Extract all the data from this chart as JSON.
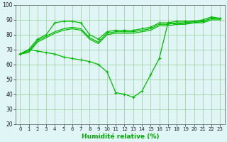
{
  "x": [
    0,
    1,
    2,
    3,
    4,
    5,
    6,
    7,
    8,
    9,
    10,
    11,
    12,
    13,
    14,
    15,
    16,
    17,
    18,
    19,
    20,
    21,
    22,
    23
  ],
  "line_upper": [
    67,
    70,
    77,
    80,
    88,
    89,
    89,
    88,
    80,
    77,
    82,
    83,
    83,
    83,
    84,
    85,
    88,
    88,
    89,
    89,
    89,
    90,
    92,
    91
  ],
  "line_mid1": [
    67,
    69,
    76,
    79,
    82,
    84,
    85,
    84,
    78,
    75,
    81,
    82,
    82,
    82,
    83,
    84,
    87,
    87,
    88,
    88,
    88,
    89,
    91,
    91
  ],
  "line_mid2": [
    67,
    68,
    75,
    78,
    81,
    83,
    84,
    83,
    77,
    74,
    80,
    81,
    81,
    81,
    82,
    83,
    86,
    86,
    87,
    87,
    88,
    88,
    90,
    90
  ],
  "line_dip": [
    67,
    70,
    69,
    68,
    67,
    65,
    64,
    63,
    62,
    60,
    55,
    41,
    40,
    38,
    42,
    53,
    64,
    88,
    87,
    88,
    89,
    89,
    91,
    91
  ],
  "line_color": "#00bb00",
  "bg_color": "#e0f5f5",
  "grid_color": "#99cc99",
  "xlabel": "Humidité relative (%)",
  "xlabel_color": "#00aa00",
  "ylim": [
    20,
    100
  ],
  "xlim_min": -0.5,
  "xlim_max": 23.5,
  "yticks": [
    20,
    30,
    40,
    50,
    60,
    70,
    80,
    90,
    100
  ],
  "xticks": [
    0,
    1,
    2,
    3,
    4,
    5,
    6,
    7,
    8,
    9,
    10,
    11,
    12,
    13,
    14,
    15,
    16,
    17,
    18,
    19,
    20,
    21,
    22,
    23
  ]
}
